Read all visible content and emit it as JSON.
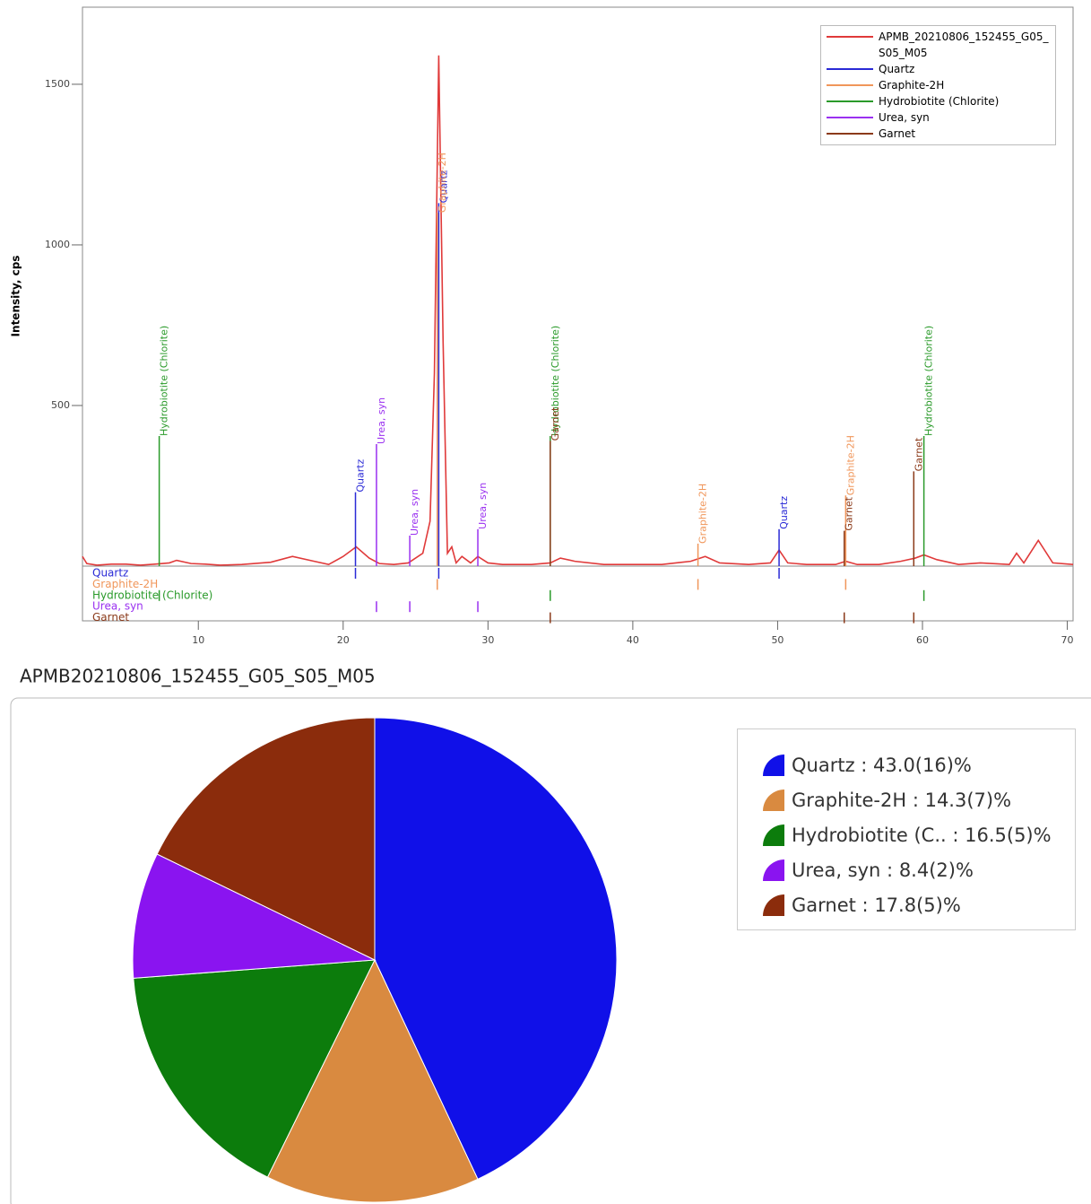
{
  "chart_data": [
    {
      "type": "line",
      "ylabel": "Intensity, cps",
      "xlim": [
        2,
        70.4
      ],
      "xticks": [
        10,
        20,
        30,
        40,
        50,
        60,
        70
      ],
      "ylim": [
        0,
        1740
      ],
      "yticks": [
        500,
        1000,
        1500
      ],
      "legend": "top-right",
      "series": [
        {
          "name": "APMB_20210806_152455_G05_S05_M05",
          "color": "#e03a3a",
          "style": "line",
          "x": [
            2,
            2.3,
            3,
            4,
            5,
            6,
            7,
            8,
            8.5,
            9.5,
            10.5,
            11.5,
            13,
            15,
            16.5,
            18,
            19,
            20,
            20.9,
            21.8,
            22.5,
            23.5,
            24.5,
            25.5,
            26,
            26.3,
            26.6,
            26.9,
            27.2,
            27.5,
            27.8,
            28.2,
            28.8,
            29.3,
            30,
            31,
            33,
            34.3,
            35,
            36,
            38,
            40,
            42,
            44,
            45,
            46,
            48,
            49.5,
            50.1,
            50.7,
            52,
            54,
            54.7,
            55.5,
            57,
            58.5,
            59.5,
            60.1,
            61,
            62.5,
            64,
            66,
            66.5,
            67,
            68,
            69,
            70.4
          ],
          "values": [
            30,
            8,
            3,
            6,
            6,
            3,
            6,
            10,
            18,
            8,
            6,
            3,
            5,
            12,
            30,
            15,
            5,
            30,
            60,
            25,
            8,
            5,
            10,
            40,
            140,
            600,
            1590,
            700,
            40,
            60,
            10,
            30,
            10,
            30,
            10,
            5,
            5,
            10,
            25,
            15,
            5,
            5,
            5,
            15,
            30,
            10,
            5,
            10,
            50,
            10,
            5,
            5,
            15,
            5,
            5,
            15,
            25,
            35,
            20,
            5,
            10,
            5,
            40,
            10,
            80,
            10,
            5
          ]
        },
        {
          "name": "Quartz",
          "color": "#2a2ad6",
          "style": "stick",
          "x": [
            20.85,
            26.6,
            50.1
          ],
          "values": [
            230,
            1130,
            115
          ]
        },
        {
          "name": "Graphite-2H",
          "color": "#f0965a",
          "style": "stick",
          "x": [
            26.5,
            44.5,
            54.7
          ],
          "values": [
            1100,
            70,
            220
          ]
        },
        {
          "name": "Hydrobiotite (Chlorite)",
          "color": "#2a9a2a",
          "style": "stick",
          "x": [
            7.3,
            34.3,
            60.1
          ],
          "values": [
            405,
            405,
            405
          ]
        },
        {
          "name": "Urea, syn",
          "color": "#9a30f0",
          "style": "stick",
          "x": [
            22.3,
            24.6,
            29.3
          ],
          "values": [
            380,
            95,
            115
          ]
        },
        {
          "name": "Garnet",
          "color": "#8b3a1a",
          "style": "stick",
          "x": [
            34.3,
            54.6,
            59.4
          ],
          "values": [
            390,
            110,
            295
          ]
        }
      ]
    },
    {
      "type": "pie",
      "title": "APMB20210806_152455_G05_S05_M05",
      "legend": "top-right",
      "categories": [
        "Quartz",
        "Graphite-2H",
        "Hydrobiotite (C..",
        "Urea, syn",
        "Garnet"
      ],
      "values": [
        43.0,
        14.3,
        16.5,
        8.4,
        17.8
      ],
      "value_labels": [
        "43.0(16)%",
        "14.3(7)%",
        "16.5(5)%",
        "8.4(2)%",
        "17.8(5)%"
      ],
      "colors": [
        "#1010e8",
        "#d98a40",
        "#0c7c0c",
        "#8a14f0",
        "#8b2c0c"
      ]
    }
  ]
}
